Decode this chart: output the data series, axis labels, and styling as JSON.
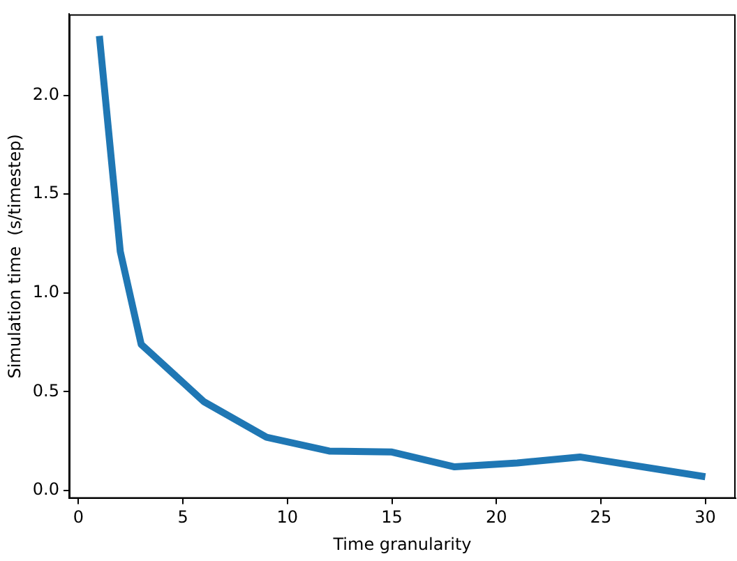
{
  "chart_data": {
    "type": "line",
    "xlabel": "Time granularity",
    "ylabel": "Simulation time  (s/timestep)",
    "x": [
      1,
      2,
      3,
      6,
      9,
      12,
      15,
      18,
      21,
      24,
      30
    ],
    "series": [
      {
        "color": "#1f77b4",
        "values": [
          2.3,
          1.21,
          0.74,
          0.45,
          0.27,
          0.2,
          0.195,
          0.12,
          0.14,
          0.17,
          0.07
        ]
      }
    ],
    "xlim": [
      -0.45,
      31.45
    ],
    "xticks": [
      0,
      5,
      10,
      15,
      20,
      25,
      30
    ],
    "ylim": [
      -0.04,
      2.41
    ],
    "yticks": [
      {
        "value": 0,
        "label": "0.0"
      },
      {
        "value": 0.5,
        "label": "0.5"
      },
      {
        "value": 1,
        "label": "1.0"
      },
      {
        "value": 1.5,
        "label": "1.5"
      },
      {
        "value": 2,
        "label": "2.0"
      }
    ],
    "grid": false,
    "legend": false,
    "marker": "none",
    "line_style": "solid"
  }
}
